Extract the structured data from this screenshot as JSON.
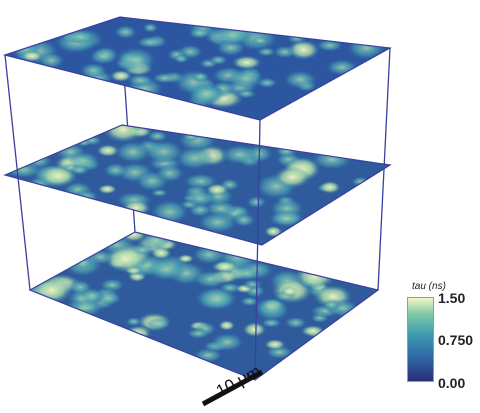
{
  "colorbar": {
    "title": "tau (ns)",
    "max_label": "1.50",
    "mid_label": "0.750",
    "min_label": "0.00",
    "min": 0.0,
    "max": 1.5,
    "colors": [
      "#2a2e7c",
      "#2f6aa6",
      "#3b98b0",
      "#7cc7a6",
      "#f4f6c8"
    ]
  },
  "scale_bar": {
    "label": "10 μm"
  },
  "volume": {
    "slices": 3,
    "edge_color": "#3b3fa0"
  }
}
